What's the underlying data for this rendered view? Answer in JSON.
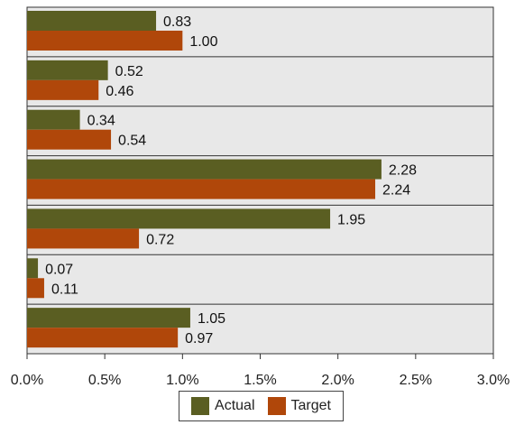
{
  "chart_data": {
    "type": "bar",
    "orientation": "horizontal",
    "categories": [
      "",
      "",
      "",
      "",
      "",
      "",
      ""
    ],
    "series": [
      {
        "name": "Actual",
        "color": "#5a5e22",
        "values": [
          0.83,
          0.52,
          0.34,
          2.28,
          1.95,
          0.07,
          1.05
        ]
      },
      {
        "name": "Target",
        "color": "#b0470a",
        "values": [
          1.0,
          0.46,
          0.54,
          2.24,
          0.72,
          0.11,
          0.97
        ]
      }
    ],
    "data_labels": [
      [
        "0.83",
        "0.52",
        "0.34",
        "2.28",
        "1.95",
        "0.07",
        "1.05"
      ],
      [
        "1.00",
        "0.46",
        "0.54",
        "2.24",
        "0.72",
        "0.11",
        "0.97"
      ]
    ],
    "x_ticks": [
      "0.0%",
      "0.5%",
      "1.0%",
      "1.5%",
      "2.0%",
      "2.5%",
      "3.0%"
    ],
    "xlim": [
      0,
      3
    ],
    "plot_background": "#e8e8e8",
    "grid": false,
    "legend_position": "bottom"
  },
  "legend": {
    "actual_label": "Actual",
    "target_label": "Target"
  }
}
